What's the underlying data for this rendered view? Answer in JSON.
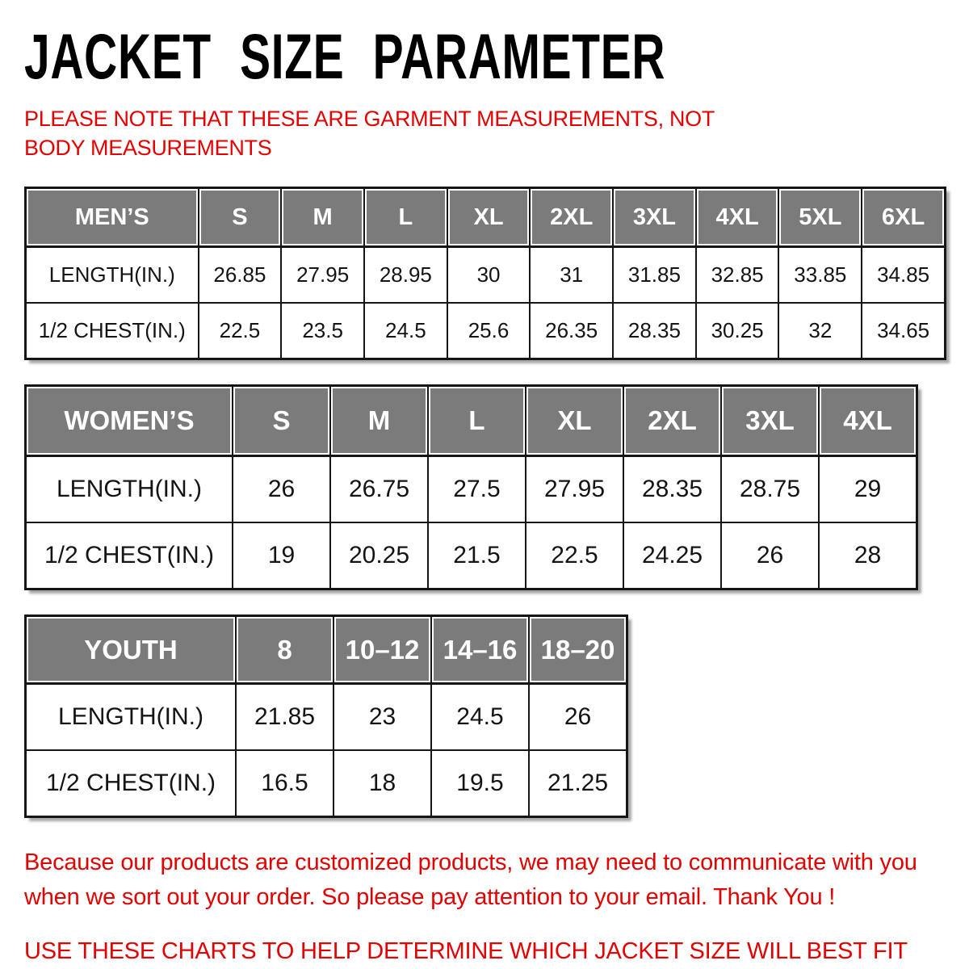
{
  "page": {
    "title": "JACKET SIZE PARAMETER",
    "note": "PLEASE NOTE THAT THESE ARE GARMENT MEASUREMENTS, NOT BODY MEASUREMENTS",
    "footer_note": "Because our products are customized products, we may need to communicate with you when we sort out your order. So please pay attention to your email. Thank You !",
    "footer_instruction": "USE THESE CHARTS TO HELP DETERMINE WHICH JACKET SIZE WILL BEST FIT YOU."
  },
  "colors": {
    "accent_red": "#e20000",
    "header_bg": "#7b7b7b",
    "header_text": "#ffffff",
    "table_border": "#151515",
    "background": "#ffffff"
  },
  "tables": [
    {
      "name": "mens",
      "header": [
        "MEN’S",
        "S",
        "M",
        "L",
        "XL",
        "2XL",
        "3XL",
        "4XL",
        "5XL",
        "6XL"
      ],
      "rows": [
        {
          "label": "LENGTH(IN.)",
          "values": [
            "26.85",
            "27.95",
            "28.95",
            "30",
            "31",
            "31.85",
            "32.85",
            "33.85",
            "34.85"
          ]
        },
        {
          "label": "1/2 CHEST(IN.)",
          "values": [
            "22.5",
            "23.5",
            "24.5",
            "25.6",
            "26.35",
            "28.35",
            "30.25",
            "32",
            "34.65"
          ]
        }
      ]
    },
    {
      "name": "womens",
      "header": [
        "WOMEN’S",
        "S",
        "M",
        "L",
        "XL",
        "2XL",
        "3XL",
        "4XL"
      ],
      "rows": [
        {
          "label": "LENGTH(IN.)",
          "values": [
            "26",
            "26.75",
            "27.5",
            "27.95",
            "28.35",
            "28.75",
            "29"
          ]
        },
        {
          "label": "1/2 CHEST(IN.)",
          "values": [
            "19",
            "20.25",
            "21.5",
            "22.5",
            "24.25",
            "26",
            "28"
          ]
        }
      ]
    },
    {
      "name": "youth",
      "header": [
        "YOUTH",
        "8",
        "10–12",
        "14–16",
        "18–20"
      ],
      "rows": [
        {
          "label": "LENGTH(IN.)",
          "values": [
            "21.85",
            "23",
            "24.5",
            "26"
          ]
        },
        {
          "label": "1/2 CHEST(IN.)",
          "values": [
            "16.5",
            "18",
            "19.5",
            "21.25"
          ]
        }
      ]
    }
  ]
}
